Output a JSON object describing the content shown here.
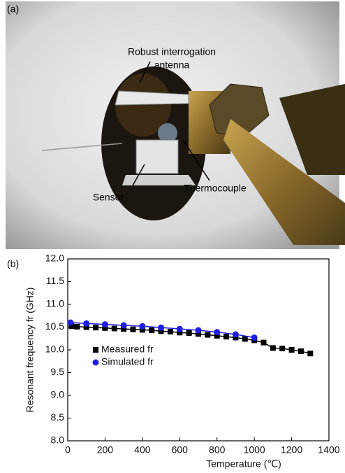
{
  "figure": {
    "panel_a": "(a)",
    "panel_b": "(b)",
    "annotations": [
      "Robust interrogation",
      "antenna",
      "Sensor",
      "Thermocouple"
    ]
  },
  "chart_data": {
    "type": "line",
    "x_label": "Temperature (℃)",
    "y_label": "Resonant frequency fr (GHz)",
    "xlim": [
      0,
      1400
    ],
    "xticks": [
      0,
      200,
      400,
      600,
      800,
      1000,
      1200,
      1400
    ],
    "ylim": [
      8.0,
      12.0
    ],
    "yticks": [
      {
        "value": 8,
        "label": "8.0"
      },
      {
        "value": 8.5,
        "label": "8.5"
      },
      {
        "value": 9,
        "label": "9.0"
      },
      {
        "value": 9.5,
        "label": "9.5"
      },
      {
        "value": 10,
        "label": "10.0"
      },
      {
        "value": 10.5,
        "label": "10.5"
      },
      {
        "value": 11,
        "label": "11.0"
      },
      {
        "value": 11.5,
        "label": "11.5"
      },
      {
        "value": 12,
        "label": "12.0"
      }
    ],
    "legend": "middle left",
    "series": [
      {
        "name": "Measured fr",
        "color": "#000000",
        "marker": "square",
        "x": [
          20,
          50,
          100,
          150,
          200,
          250,
          300,
          350,
          400,
          450,
          500,
          550,
          600,
          650,
          700,
          750,
          800,
          850,
          900,
          950,
          1000,
          1050,
          1100,
          1150,
          1200,
          1250,
          1300
        ],
        "values": [
          10.52,
          10.51,
          10.5,
          10.49,
          10.48,
          10.47,
          10.46,
          10.45,
          10.44,
          10.43,
          10.41,
          10.4,
          10.38,
          10.37,
          10.35,
          10.33,
          10.31,
          10.29,
          10.27,
          10.24,
          10.21,
          10.16,
          10.04,
          10.03,
          10.0,
          9.97,
          9.92
        ]
      },
      {
        "name": "Simulated fr",
        "color": "#1f1fe0",
        "marker": "circle",
        "x": [
          15,
          100,
          200,
          300,
          400,
          500,
          600,
          700,
          800,
          900,
          1000
        ],
        "values": [
          10.6,
          10.58,
          10.56,
          10.54,
          10.52,
          10.49,
          10.46,
          10.43,
          10.39,
          10.34,
          10.27
        ]
      }
    ]
  }
}
